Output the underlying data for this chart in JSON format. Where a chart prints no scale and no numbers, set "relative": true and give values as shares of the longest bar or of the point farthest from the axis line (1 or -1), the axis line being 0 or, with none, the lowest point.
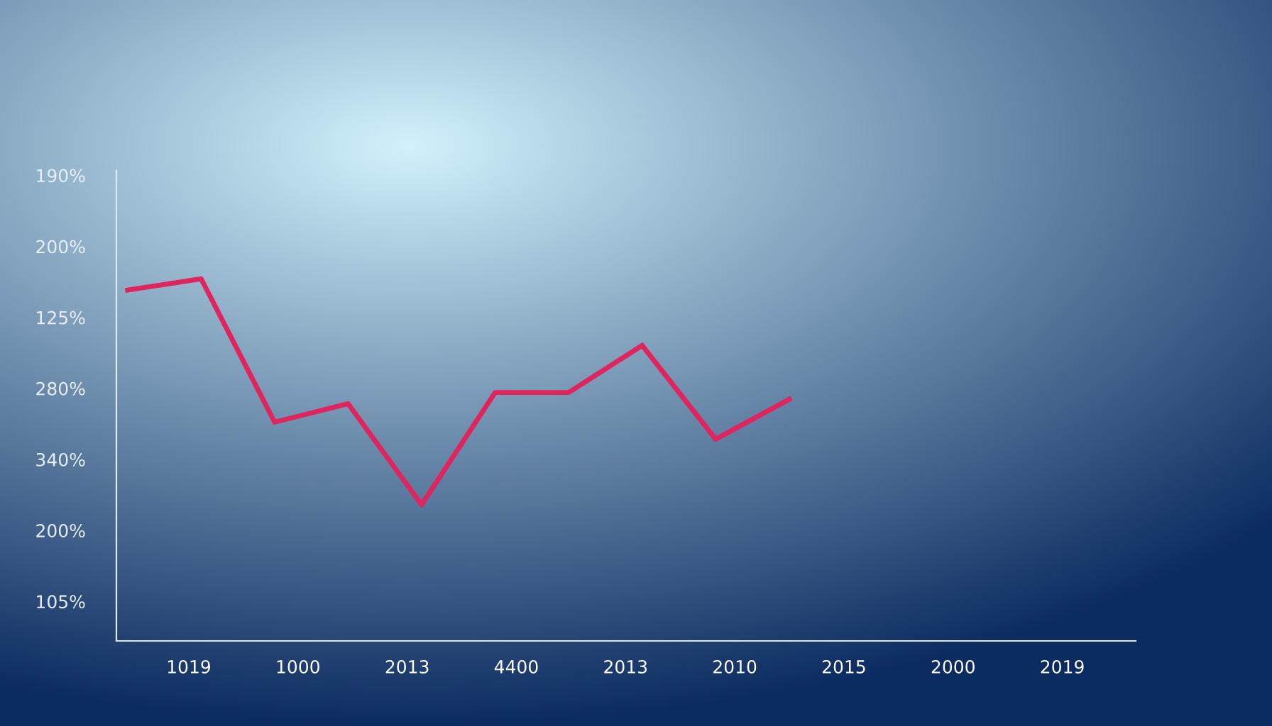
{
  "chart_data": {
    "type": "line",
    "relative": true,
    "categories": [
      null,
      null,
      null,
      null,
      null,
      null,
      null,
      null,
      null,
      null
    ],
    "annotations": [
      "190%",
      "200%",
      "125%",
      "280%",
      "340%",
      "200%",
      "105%",
      "1019",
      "1000",
      "2013",
      "4400",
      "2013",
      "2010",
      "2015",
      "2000",
      "2019"
    ],
    "series": [
      {
        "color": "#e0245e",
        "values": [
          0.969,
          1,
          0.604,
          0.655,
          0.376,
          0.686,
          0.686,
          0.816,
          0.557,
          0.667
        ]
      }
    ],
    "grid": false,
    "legend": false,
    "marker": "none",
    "line_style": "solid"
  }
}
